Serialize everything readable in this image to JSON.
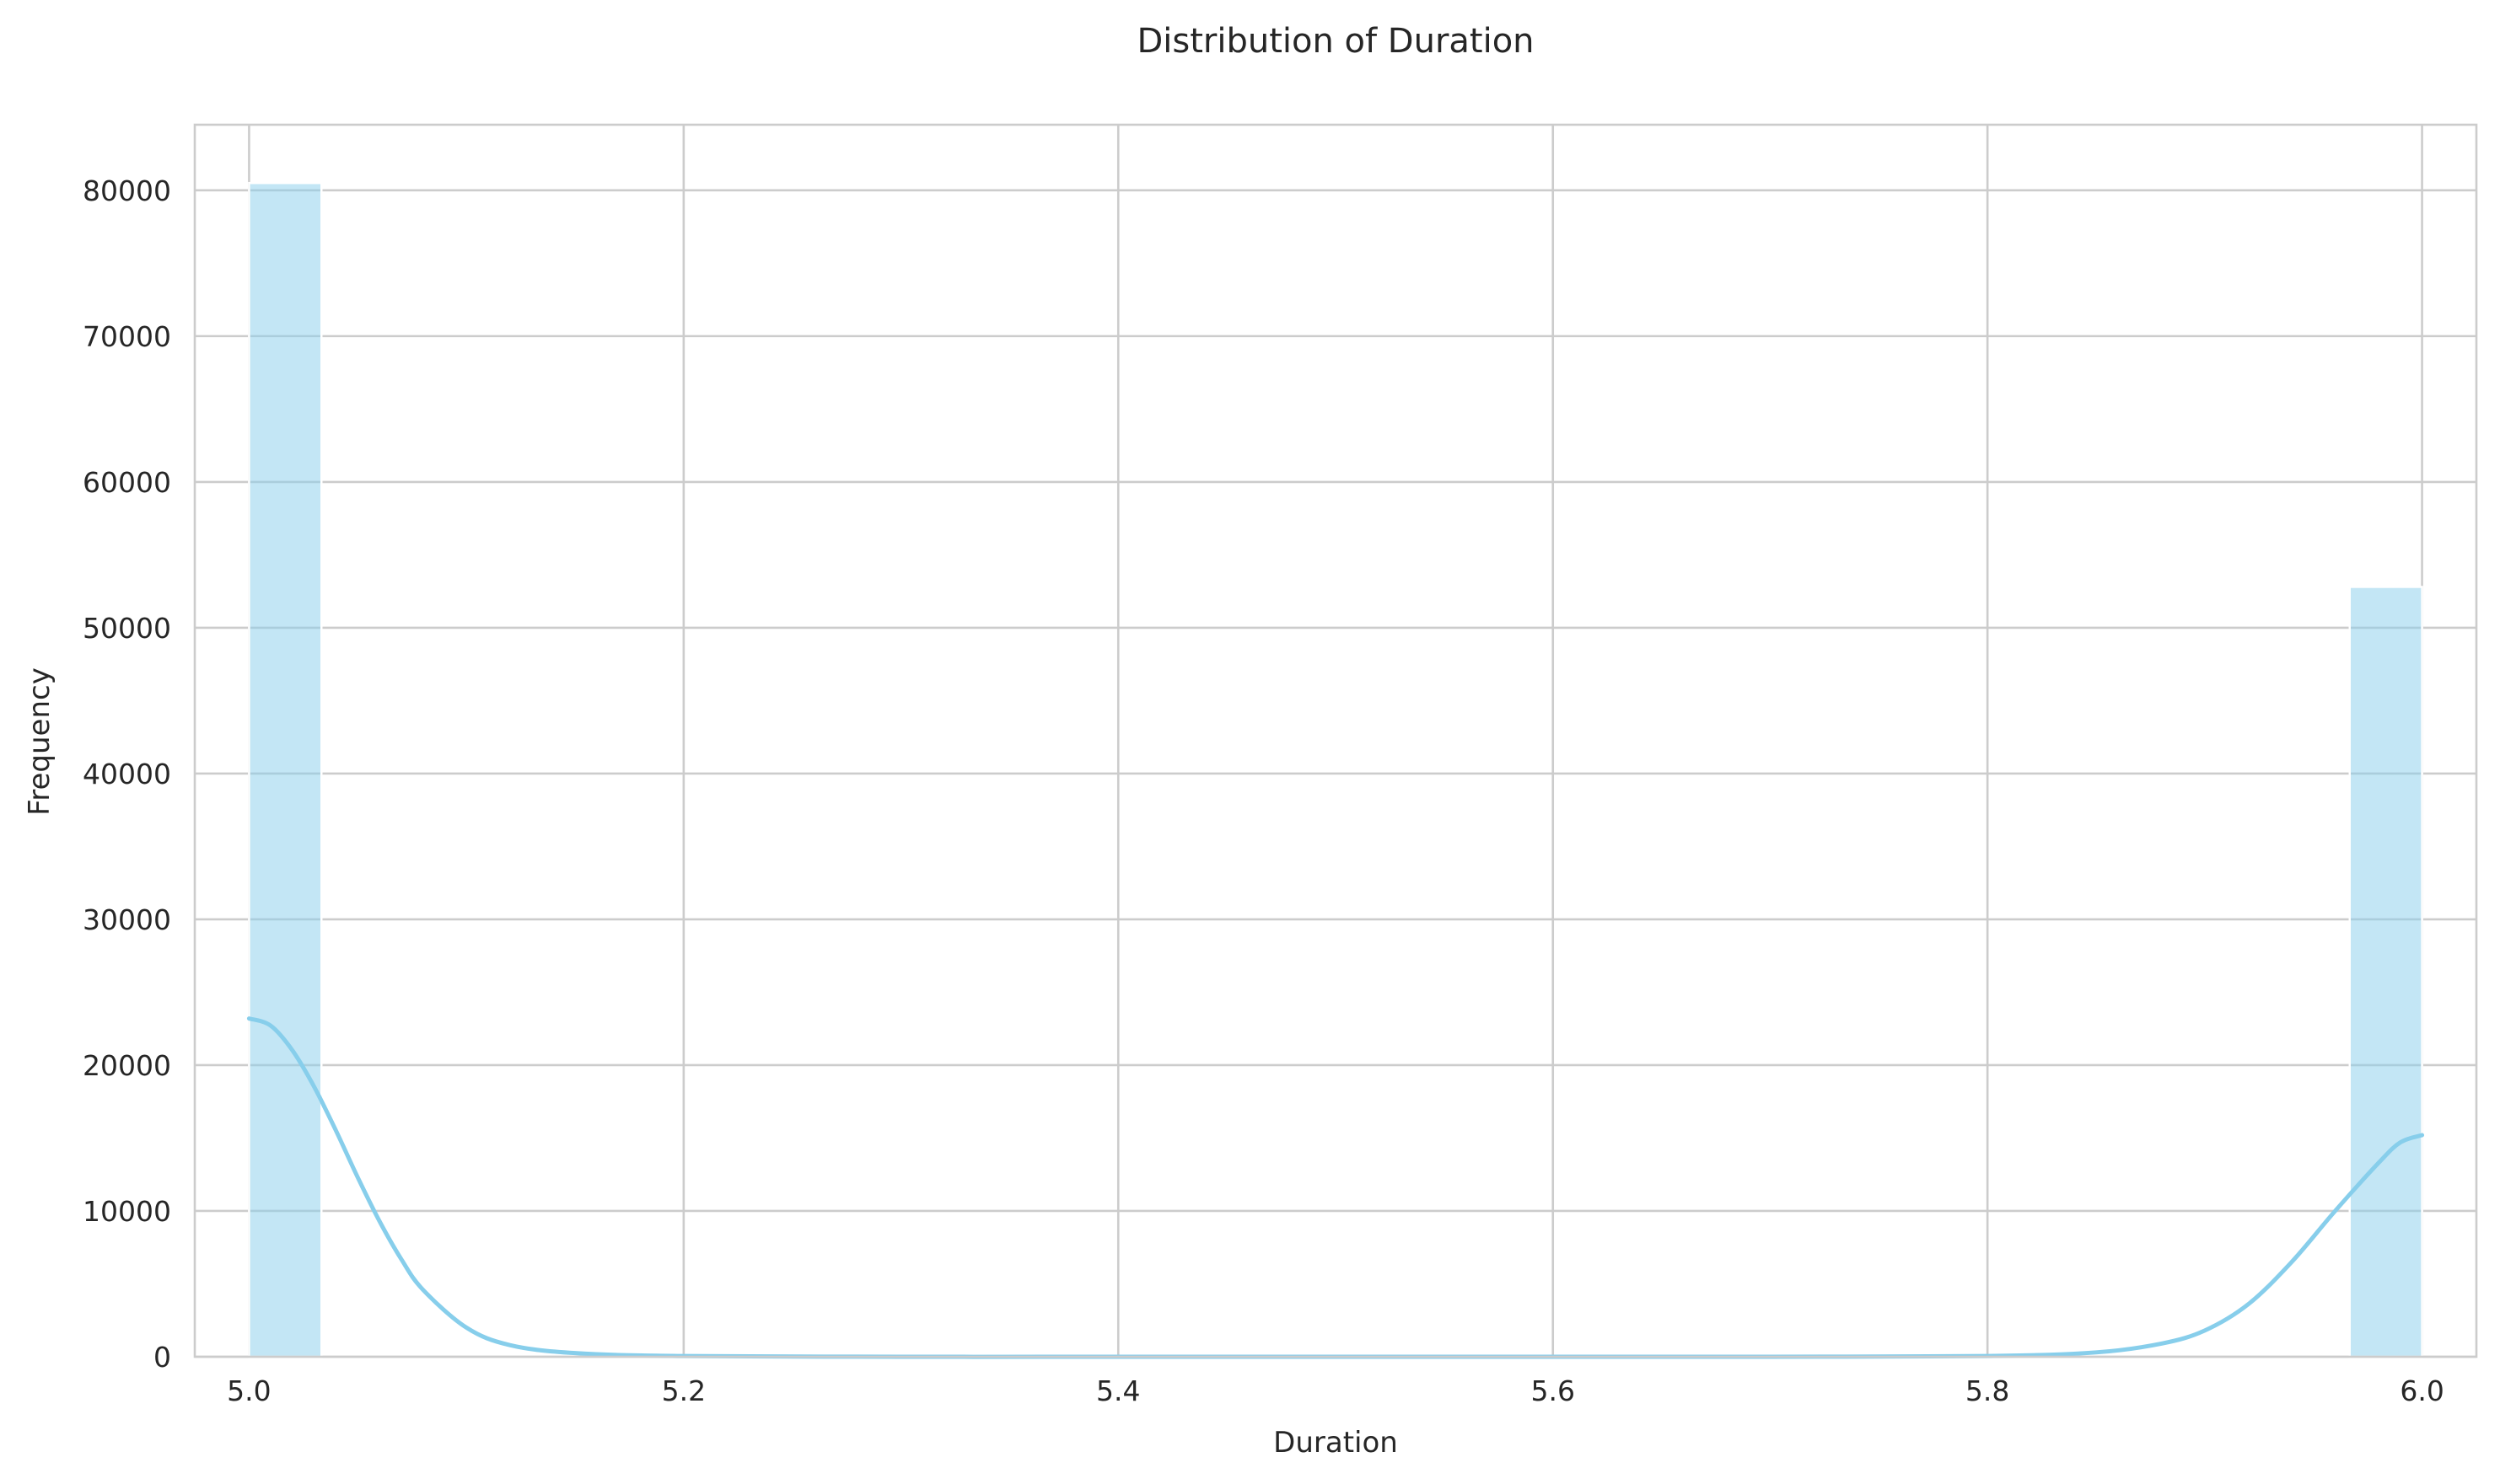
{
  "chart_data": {
    "type": "bar",
    "title": "Distribution of Duration",
    "xlabel": "Duration",
    "ylabel": "Frequency",
    "xlim": [
      4.975,
      6.025
    ],
    "ylim": [
      0,
      84500
    ],
    "xticks": [
      5.0,
      5.2,
      5.4,
      5.6,
      5.8,
      6.0
    ],
    "xtick_labels": [
      "5.0",
      "5.2",
      "5.4",
      "5.6",
      "5.8",
      "6.0"
    ],
    "yticks": [
      0,
      10000,
      20000,
      30000,
      40000,
      50000,
      60000,
      70000,
      80000
    ],
    "ytick_labels": [
      "0",
      "10000",
      "20000",
      "30000",
      "40000",
      "50000",
      "60000",
      "70000",
      "80000"
    ],
    "grid": true,
    "bins": [
      {
        "x_start": 5.0,
        "x_end": 5.0333,
        "count": 80500
      },
      {
        "x_start": 5.9667,
        "x_end": 6.0,
        "count": 52800
      }
    ],
    "kde": {
      "x": [
        5.0,
        5.01,
        5.02,
        5.03,
        5.04,
        5.05,
        5.06,
        5.07,
        5.08,
        5.1,
        5.12,
        5.15,
        5.2,
        5.3,
        5.4,
        5.5,
        5.6,
        5.7,
        5.8,
        5.85,
        5.88,
        5.9,
        5.92,
        5.94,
        5.96,
        5.98,
        5.99,
        6.0
      ],
      "y": [
        23200,
        22700,
        21000,
        18500,
        15500,
        12300,
        9300,
        6700,
        4600,
        2000,
        800,
        250,
        50,
        0,
        0,
        0,
        0,
        0,
        50,
        300,
        900,
        1800,
        3600,
        6500,
        10000,
        13300,
        14700,
        15200
      ]
    },
    "colors": {
      "bar": "#87ceeb",
      "bar_opacity": 0.5,
      "kde": "#87ceeb",
      "grid": "#cccccc",
      "text": "#262626"
    }
  }
}
